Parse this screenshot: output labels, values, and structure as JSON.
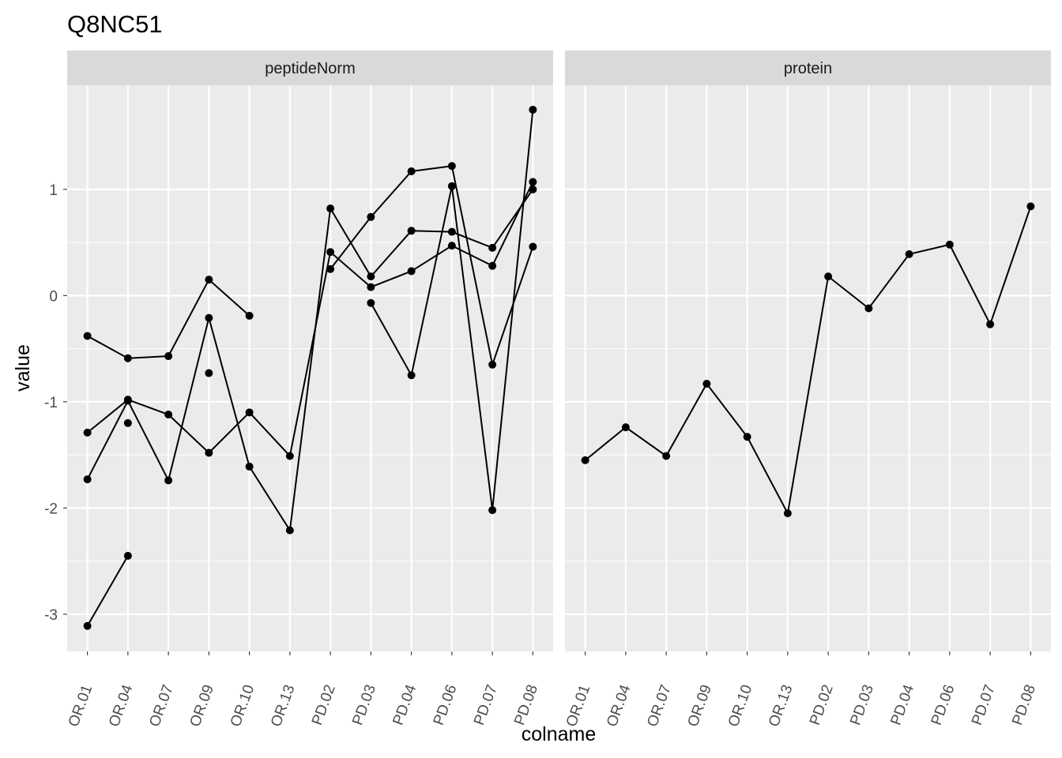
{
  "chart_data": {
    "type": "line",
    "title": "Q8NC51",
    "xlabel": "colname",
    "ylabel": "value",
    "ylim": [
      -3.35,
      1.98
    ],
    "y_ticks": [
      -3,
      -2,
      -1,
      0,
      1
    ],
    "y_tick_labels": [
      "-3",
      "-2",
      "-1",
      "0",
      "1"
    ],
    "categories": [
      "OR.01",
      "OR.04",
      "OR.07",
      "OR.09",
      "OR.10",
      "OR.13",
      "PD.02",
      "PD.03",
      "PD.04",
      "PD.06",
      "PD.07",
      "PD.08"
    ],
    "grid": true,
    "panels": [
      {
        "name": "peptideNorm",
        "series": [
          {
            "values": [
              -0.38,
              -0.59,
              -0.57,
              0.15,
              -0.19,
              null,
              null,
              null,
              null,
              null,
              null,
              null
            ]
          },
          {
            "values": [
              -1.29,
              -0.98,
              -1.12,
              -1.48,
              -1.1,
              -1.51,
              0.41,
              0.08,
              0.23,
              0.47,
              0.28,
              1.07
            ]
          },
          {
            "values": [
              -1.73,
              -0.99,
              -1.74,
              -0.21,
              -1.61,
              -2.21,
              0.82,
              0.18,
              0.61,
              0.6,
              0.45,
              1.0
            ]
          },
          {
            "values": [
              -3.11,
              -2.45,
              null,
              null,
              null,
              null,
              null,
              null,
              null,
              null,
              null,
              null
            ]
          },
          {
            "values": [
              null,
              null,
              null,
              null,
              null,
              null,
              0.25,
              0.74,
              1.17,
              1.22,
              -0.65,
              0.46
            ]
          },
          {
            "values": [
              null,
              -1.2,
              null,
              -0.73,
              null,
              null,
              null,
              -0.07,
              -0.75,
              1.03,
              -2.02,
              1.75
            ]
          }
        ]
      },
      {
        "name": "protein",
        "series": [
          {
            "values": [
              -1.55,
              -1.24,
              -1.51,
              -0.83,
              -1.33,
              -2.05,
              0.18,
              -0.12,
              0.39,
              0.48,
              -0.27,
              0.84
            ]
          }
        ]
      }
    ]
  }
}
